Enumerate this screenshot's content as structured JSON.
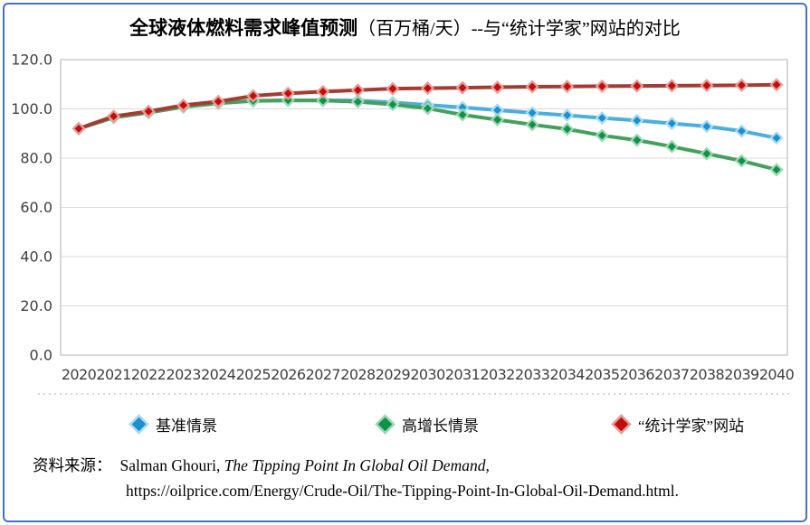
{
  "title": {
    "bold_part": "全球液体燃料需求峰值预测",
    "normal_part": "（百万桶/天）--与“统计学家”网站的对比"
  },
  "chart_data": {
    "type": "line",
    "title": "全球液体燃料需求峰值预测（百万桶/天）--与“统计学家”网站的对比",
    "xlabel": "",
    "ylabel": "",
    "x": [
      2020,
      2021,
      2022,
      2023,
      2024,
      2025,
      2026,
      2027,
      2028,
      2029,
      2030,
      2031,
      2032,
      2033,
      2034,
      2035,
      2036,
      2037,
      2038,
      2039,
      2040
    ],
    "ylim": [
      0,
      120
    ],
    "yticks": [
      0,
      20,
      40,
      60,
      80,
      100,
      120
    ],
    "ytick_labels": [
      "0.0",
      "20.0",
      "40.0",
      "60.0",
      "80.0",
      "100.0",
      "120.0"
    ],
    "grid": true,
    "legend_position": "bottom",
    "marker": "diamond",
    "series": [
      {
        "name": "基准情景",
        "line_color": "#4aaede",
        "marker_color": "#1d8fce",
        "halo_color": "#a8dcf2",
        "values": [
          92.0,
          96.5,
          98.5,
          100.8,
          102.3,
          103.2,
          103.4,
          103.5,
          103.4,
          102.6,
          101.6,
          100.6,
          99.5,
          98.4,
          97.4,
          96.3,
          95.3,
          94.1,
          92.9,
          91.0,
          88.2
        ]
      },
      {
        "name": "高增长情景",
        "line_color": "#44a05c",
        "marker_color": "#12914a",
        "halo_color": "#9bd8b0",
        "values": [
          92.0,
          96.5,
          98.5,
          100.8,
          102.3,
          103.3,
          103.5,
          103.4,
          102.9,
          101.8,
          100.2,
          97.6,
          95.6,
          93.6,
          91.8,
          89.2,
          87.3,
          84.7,
          81.8,
          78.9,
          75.3
        ]
      },
      {
        "name": "“统计学家”网站",
        "line_color": "#a63a32",
        "marker_color": "#c00e0e",
        "halo_color": "#eb9b94",
        "values": [
          92.0,
          97.0,
          99.0,
          101.5,
          103.0,
          105.3,
          106.3,
          107.0,
          107.6,
          108.2,
          108.4,
          108.6,
          108.8,
          109.0,
          109.1,
          109.2,
          109.3,
          109.4,
          109.5,
          109.6,
          109.8
        ]
      }
    ],
    "style": {
      "plot_border_color": "#bfbfbf",
      "grid_color": "#d9d9d9",
      "axis_text_color": "#3f3f3f",
      "separator_color": "#c9c9c9",
      "frame_border_color": "#4472c4"
    }
  },
  "footer": {
    "source_label": "资料来源：",
    "author": "Salman Ghouri,",
    "work_title": "The Tipping Point In Global Oil Demand,",
    "url": "https://oilprice.com/Energy/Crude-Oil/The-Tipping-Point-In-Global-Oil-Demand.html."
  }
}
